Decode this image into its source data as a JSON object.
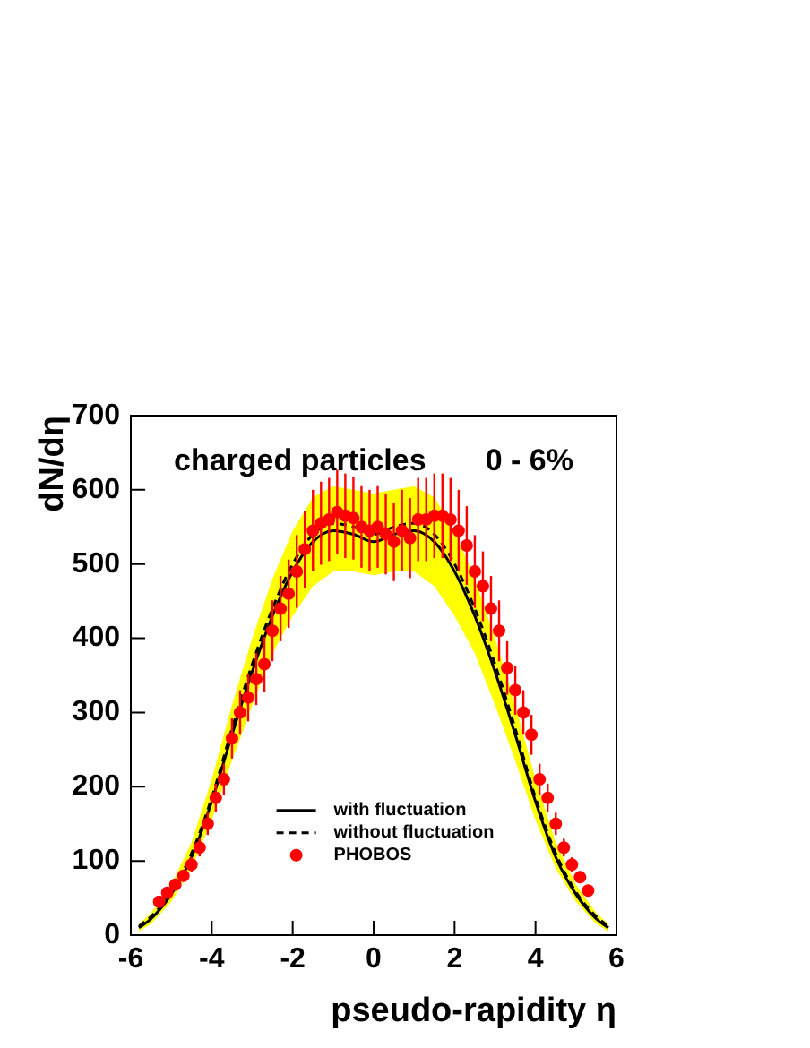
{
  "chart_data": {
    "type": "line",
    "title": "charged particles",
    "xlabel": "pseudo-rapidity η",
    "ylabel": "dN/dη",
    "annotations": [
      "0 - 6%"
    ],
    "xlim": [
      -6,
      6
    ],
    "xticks": [
      -6,
      -4,
      -2,
      0,
      2,
      4,
      6
    ],
    "ylim": [
      0,
      700
    ],
    "yticks": [
      0,
      100,
      200,
      300,
      400,
      500,
      600,
      700
    ],
    "grid": false,
    "legend": "bottom",
    "series": [
      {
        "name": "with fluctuation",
        "color": "#000000",
        "line_style": "solid",
        "marker": "none",
        "x": [
          -5.8,
          -5.5,
          -5,
          -4.5,
          -4,
          -3.5,
          -3,
          -2.5,
          -2,
          -1.5,
          -1,
          -0.5,
          0,
          0.5,
          1,
          1.5,
          2,
          2.5,
          3,
          3.5,
          4,
          4.5,
          5,
          5.5,
          5.8
        ],
        "values": [
          10,
          22,
          55,
          105,
          180,
          270,
          355,
          430,
          490,
          530,
          545,
          540,
          530,
          540,
          545,
          530,
          490,
          430,
          355,
          270,
          180,
          105,
          55,
          22,
          10
        ],
        "lower": [
          5,
          15,
          45,
          90,
          155,
          235,
          310,
          380,
          430,
          470,
          490,
          490,
          485,
          490,
          490,
          470,
          430,
          380,
          310,
          235,
          155,
          90,
          45,
          15,
          5
        ],
        "upper": [
          15,
          30,
          68,
          125,
          210,
          310,
          400,
          480,
          545,
          590,
          605,
          600,
          595,
          600,
          605,
          590,
          545,
          480,
          400,
          310,
          210,
          125,
          68,
          30,
          15
        ]
      },
      {
        "name": "without fluctuation",
        "color": "#000000",
        "line_style": "dashed",
        "marker": "none",
        "x": [
          -5.8,
          -5.5,
          -5,
          -4.5,
          -4,
          -3.5,
          -3,
          -2.5,
          -2,
          -1.5,
          -1,
          -0.5,
          0,
          0.5,
          1,
          1.5,
          2,
          2.5,
          3,
          3.5,
          4,
          4.5,
          5,
          5.5,
          5.8
        ],
        "values": [
          12,
          25,
          58,
          110,
          185,
          278,
          365,
          440,
          500,
          540,
          555,
          550,
          540,
          550,
          555,
          540,
          500,
          440,
          365,
          278,
          185,
          110,
          58,
          25,
          12
        ]
      },
      {
        "name": "PHOBOS",
        "type": "scatter",
        "color": "#ff0000",
        "marker": "circle",
        "x": [
          -5.3,
          -5.1,
          -4.9,
          -4.7,
          -4.5,
          -4.3,
          -4.1,
          -3.9,
          -3.7,
          -3.5,
          -3.3,
          -3.1,
          -2.9,
          -2.7,
          -2.5,
          -2.3,
          -2.1,
          -1.9,
          -1.7,
          -1.5,
          -1.3,
          -1.1,
          -0.9,
          -0.7,
          -0.5,
          -0.3,
          -0.1,
          0.1,
          0.3,
          0.5,
          0.7,
          0.9,
          1.1,
          1.3,
          1.5,
          1.7,
          1.9,
          2.1,
          2.3,
          2.5,
          2.7,
          2.9,
          3.1,
          3.3,
          3.5,
          3.7,
          3.9,
          4.1,
          4.3,
          4.5,
          4.7,
          4.9,
          5.1,
          5.3
        ],
        "values": [
          45,
          57,
          68,
          80,
          95,
          118,
          150,
          185,
          210,
          265,
          300,
          320,
          345,
          365,
          410,
          440,
          460,
          490,
          520,
          545,
          555,
          560,
          570,
          565,
          562,
          550,
          545,
          550,
          540,
          530,
          545,
          535,
          560,
          560,
          565,
          565,
          560,
          545,
          525,
          490,
          470,
          440,
          410,
          360,
          330,
          300,
          270,
          210,
          185,
          150,
          118,
          95,
          78,
          60
        ],
        "errors": [
          5,
          6,
          7,
          8,
          10,
          12,
          15,
          19,
          21,
          27,
          30,
          32,
          35,
          37,
          41,
          44,
          46,
          49,
          52,
          55,
          56,
          56,
          57,
          57,
          56,
          55,
          55,
          55,
          54,
          53,
          55,
          54,
          56,
          56,
          57,
          57,
          56,
          55,
          53,
          49,
          47,
          44,
          41,
          36,
          33,
          30,
          27,
          21,
          19,
          15,
          12,
          10,
          8,
          6
        ]
      }
    ]
  }
}
